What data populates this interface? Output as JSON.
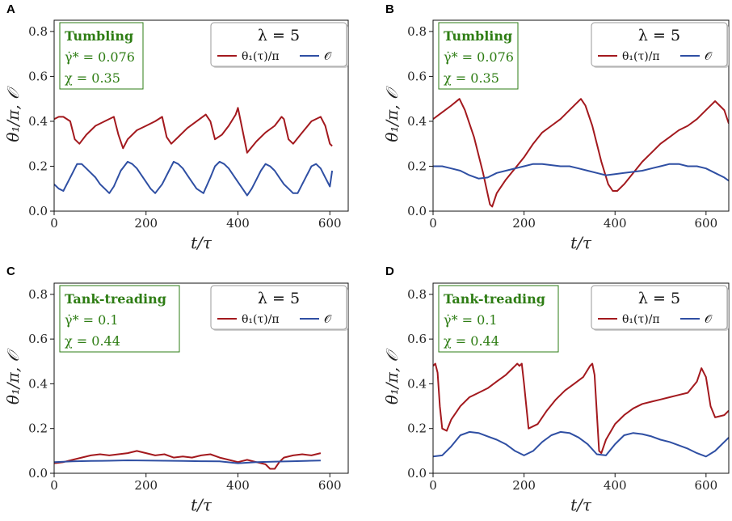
{
  "chart_data": [
    {
      "panel": "A",
      "type": "line",
      "xlabel": "t/τ",
      "ylabel": "θ₁/π, 𝒪",
      "xlim": [
        0,
        640
      ],
      "ylim": [
        0,
        0.85
      ],
      "xticks": [
        0,
        200,
        400,
        600
      ],
      "yticks": [
        0.0,
        0.2,
        0.4,
        0.6,
        0.8
      ],
      "xtick_labels": [
        "0",
        "200",
        "400",
        "600"
      ],
      "ytick_labels": [
        "0.0",
        "0.2",
        "0.4",
        "0.6",
        "0.8"
      ],
      "annotation": {
        "title": "Tumbling",
        "rate": "γ̇* = 0.076",
        "chi": "χ = 0.35"
      },
      "legend": {
        "title": "λ = 5",
        "entries": [
          "θ₁(τ)/π",
          "𝒪"
        ]
      },
      "series": [
        {
          "name": "θ₁(τ)/π",
          "color": "#a3191e",
          "x": [
            0,
            10,
            20,
            35,
            45,
            55,
            70,
            90,
            110,
            130,
            140,
            150,
            160,
            180,
            200,
            220,
            235,
            245,
            255,
            270,
            290,
            310,
            330,
            340,
            350,
            365,
            380,
            395,
            400,
            410,
            420,
            440,
            460,
            480,
            495,
            500,
            510,
            520,
            540,
            560,
            580,
            590,
            600,
            605
          ],
          "y": [
            0.41,
            0.42,
            0.42,
            0.4,
            0.32,
            0.3,
            0.34,
            0.38,
            0.4,
            0.42,
            0.34,
            0.28,
            0.32,
            0.36,
            0.38,
            0.4,
            0.42,
            0.33,
            0.3,
            0.33,
            0.37,
            0.4,
            0.43,
            0.4,
            0.32,
            0.34,
            0.38,
            0.43,
            0.46,
            0.36,
            0.26,
            0.31,
            0.35,
            0.38,
            0.42,
            0.41,
            0.32,
            0.3,
            0.35,
            0.4,
            0.42,
            0.38,
            0.3,
            0.29
          ]
        },
        {
          "name": "𝒪",
          "color": "#2f4fa3",
          "x": [
            0,
            10,
            20,
            30,
            40,
            50,
            60,
            70,
            80,
            90,
            100,
            110,
            120,
            130,
            145,
            160,
            170,
            180,
            190,
            200,
            210,
            220,
            235,
            250,
            260,
            270,
            280,
            290,
            300,
            310,
            325,
            340,
            350,
            360,
            370,
            380,
            390,
            400,
            410,
            420,
            430,
            440,
            450,
            460,
            470,
            480,
            490,
            500,
            510,
            520,
            530,
            540,
            550,
            560,
            570,
            580,
            590,
            600,
            605
          ],
          "y": [
            0.12,
            0.1,
            0.09,
            0.13,
            0.17,
            0.21,
            0.21,
            0.19,
            0.17,
            0.15,
            0.12,
            0.1,
            0.08,
            0.11,
            0.18,
            0.22,
            0.21,
            0.19,
            0.16,
            0.13,
            0.1,
            0.08,
            0.12,
            0.18,
            0.22,
            0.21,
            0.19,
            0.16,
            0.13,
            0.1,
            0.08,
            0.15,
            0.2,
            0.22,
            0.21,
            0.19,
            0.16,
            0.13,
            0.1,
            0.07,
            0.1,
            0.14,
            0.18,
            0.21,
            0.2,
            0.18,
            0.15,
            0.12,
            0.1,
            0.08,
            0.08,
            0.12,
            0.16,
            0.2,
            0.21,
            0.19,
            0.15,
            0.11,
            0.18
          ]
        }
      ]
    },
    {
      "panel": "B",
      "type": "line",
      "xlabel": "t/τ",
      "ylabel": "θ₁/π, 𝒪",
      "xlim": [
        0,
        650
      ],
      "ylim": [
        0,
        0.85
      ],
      "xticks": [
        0,
        200,
        400,
        600
      ],
      "yticks": [
        0.0,
        0.2,
        0.4,
        0.6,
        0.8
      ],
      "xtick_labels": [
        "0",
        "200",
        "400",
        "600"
      ],
      "ytick_labels": [
        "0.0",
        "0.2",
        "0.4",
        "0.6",
        "0.8"
      ],
      "annotation": {
        "title": "Tumbling",
        "rate": "γ̇* = 0.076",
        "chi": "χ = 0.35"
      },
      "legend": {
        "title": "λ = 5",
        "entries": [
          "θ₁(τ)/π",
          "𝒪"
        ]
      },
      "series": [
        {
          "name": "θ₁(τ)/π",
          "color": "#a3191e",
          "x": [
            0,
            20,
            40,
            58,
            70,
            90,
            110,
            125,
            130,
            140,
            160,
            180,
            200,
            220,
            240,
            260,
            280,
            300,
            315,
            325,
            335,
            350,
            370,
            385,
            395,
            405,
            420,
            440,
            460,
            480,
            500,
            520,
            540,
            560,
            580,
            600,
            620,
            640,
            650
          ],
          "y": [
            0.41,
            0.44,
            0.47,
            0.5,
            0.45,
            0.33,
            0.17,
            0.03,
            0.02,
            0.08,
            0.14,
            0.19,
            0.24,
            0.3,
            0.35,
            0.38,
            0.41,
            0.45,
            0.48,
            0.5,
            0.47,
            0.38,
            0.22,
            0.12,
            0.09,
            0.09,
            0.12,
            0.17,
            0.22,
            0.26,
            0.3,
            0.33,
            0.36,
            0.38,
            0.41,
            0.45,
            0.49,
            0.45,
            0.39
          ]
        },
        {
          "name": "𝒪",
          "color": "#2f4fa3",
          "x": [
            0,
            20,
            40,
            60,
            80,
            100,
            120,
            140,
            160,
            180,
            200,
            220,
            240,
            260,
            280,
            300,
            320,
            340,
            360,
            380,
            400,
            420,
            440,
            460,
            480,
            500,
            520,
            540,
            560,
            580,
            600,
            620,
            640,
            650
          ],
          "y": [
            0.2,
            0.2,
            0.19,
            0.18,
            0.16,
            0.145,
            0.15,
            0.17,
            0.18,
            0.19,
            0.2,
            0.21,
            0.21,
            0.205,
            0.2,
            0.2,
            0.19,
            0.18,
            0.17,
            0.16,
            0.165,
            0.17,
            0.175,
            0.18,
            0.19,
            0.2,
            0.21,
            0.21,
            0.2,
            0.2,
            0.19,
            0.17,
            0.15,
            0.135
          ]
        }
      ]
    },
    {
      "panel": "C",
      "type": "line",
      "xlabel": "t/τ",
      "ylabel": "θ₁/π, 𝒪",
      "xlim": [
        0,
        640
      ],
      "ylim": [
        0,
        0.85
      ],
      "xticks": [
        0,
        200,
        400,
        600
      ],
      "yticks": [
        0.0,
        0.2,
        0.4,
        0.6,
        0.8
      ],
      "xtick_labels": [
        "0",
        "200",
        "400",
        "600"
      ],
      "ytick_labels": [
        "0.0",
        "0.2",
        "0.4",
        "0.6",
        "0.8"
      ],
      "annotation": {
        "title": "Tank-treading",
        "rate": "γ̇* = 0.1",
        "chi": "χ = 0.44"
      },
      "legend": {
        "title": "λ = 5",
        "entries": [
          "θ₁(τ)/π",
          "𝒪"
        ]
      },
      "series": [
        {
          "name": "θ₁(τ)/π",
          "color": "#a3191e",
          "x": [
            0,
            20,
            40,
            60,
            80,
            100,
            120,
            140,
            160,
            180,
            200,
            220,
            240,
            260,
            280,
            300,
            320,
            340,
            360,
            380,
            400,
            420,
            440,
            460,
            470,
            480,
            490,
            500,
            520,
            540,
            560,
            580
          ],
          "y": [
            0.045,
            0.05,
            0.06,
            0.07,
            0.08,
            0.085,
            0.08,
            0.085,
            0.09,
            0.1,
            0.09,
            0.08,
            0.085,
            0.07,
            0.075,
            0.07,
            0.08,
            0.085,
            0.07,
            0.06,
            0.05,
            0.06,
            0.05,
            0.04,
            0.02,
            0.02,
            0.05,
            0.07,
            0.08,
            0.085,
            0.08,
            0.09
          ]
        },
        {
          "name": "𝒪",
          "color": "#2f4fa3",
          "x": [
            0,
            40,
            80,
            120,
            160,
            200,
            240,
            280,
            320,
            360,
            400,
            440,
            480,
            520,
            560,
            580
          ],
          "y": [
            0.05,
            0.053,
            0.055,
            0.056,
            0.058,
            0.057,
            0.056,
            0.055,
            0.054,
            0.053,
            0.045,
            0.05,
            0.052,
            0.054,
            0.056,
            0.057
          ]
        }
      ]
    },
    {
      "panel": "D",
      "type": "line",
      "xlabel": "t/τ",
      "ylabel": "θ₁/π, 𝒪",
      "xlim": [
        0,
        650
      ],
      "ylim": [
        0,
        0.85
      ],
      "xticks": [
        0,
        200,
        400,
        600
      ],
      "yticks": [
        0.0,
        0.2,
        0.4,
        0.6,
        0.8
      ],
      "xtick_labels": [
        "0",
        "200",
        "400",
        "600"
      ],
      "ytick_labels": [
        "0.0",
        "0.2",
        "0.4",
        "0.6",
        "0.8"
      ],
      "annotation": {
        "title": "Tank-treading",
        "rate": "γ̇* = 0.1",
        "chi": "χ = 0.44"
      },
      "legend": {
        "title": "λ = 5",
        "entries": [
          "θ₁(τ)/π",
          "𝒪"
        ]
      },
      "series": [
        {
          "name": "θ₁(τ)/π",
          "color": "#a3191e",
          "x": [
            0,
            5,
            10,
            15,
            20,
            30,
            40,
            60,
            80,
            100,
            120,
            140,
            160,
            180,
            185,
            190,
            195,
            200,
            210,
            230,
            250,
            270,
            290,
            310,
            330,
            345,
            350,
            355,
            365,
            370,
            380,
            400,
            420,
            440,
            460,
            480,
            500,
            520,
            540,
            560,
            580,
            590,
            600,
            610,
            620,
            640,
            650
          ],
          "y": [
            0.48,
            0.49,
            0.45,
            0.3,
            0.2,
            0.19,
            0.24,
            0.3,
            0.34,
            0.36,
            0.38,
            0.41,
            0.44,
            0.48,
            0.49,
            0.48,
            0.49,
            0.4,
            0.2,
            0.22,
            0.28,
            0.33,
            0.37,
            0.4,
            0.43,
            0.48,
            0.49,
            0.44,
            0.1,
            0.09,
            0.15,
            0.22,
            0.26,
            0.29,
            0.31,
            0.32,
            0.33,
            0.34,
            0.35,
            0.36,
            0.41,
            0.47,
            0.43,
            0.3,
            0.25,
            0.26,
            0.28
          ]
        },
        {
          "name": "𝒪",
          "color": "#2f4fa3",
          "x": [
            0,
            20,
            40,
            60,
            80,
            100,
            120,
            140,
            160,
            180,
            200,
            220,
            240,
            260,
            280,
            300,
            320,
            340,
            360,
            380,
            400,
            420,
            440,
            460,
            480,
            500,
            520,
            540,
            560,
            580,
            600,
            620,
            640,
            650
          ],
          "y": [
            0.075,
            0.08,
            0.12,
            0.17,
            0.185,
            0.18,
            0.165,
            0.15,
            0.13,
            0.1,
            0.08,
            0.1,
            0.14,
            0.17,
            0.185,
            0.18,
            0.16,
            0.13,
            0.085,
            0.08,
            0.13,
            0.17,
            0.18,
            0.175,
            0.165,
            0.15,
            0.14,
            0.125,
            0.11,
            0.09,
            0.075,
            0.1,
            0.14,
            0.16
          ]
        }
      ]
    }
  ]
}
